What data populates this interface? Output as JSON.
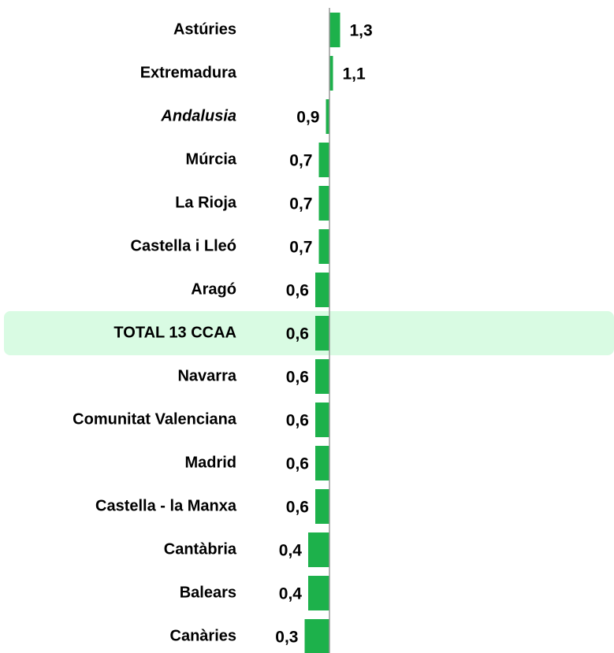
{
  "chart_data": {
    "type": "bar",
    "orientation": "horizontal",
    "base": 1,
    "categories": [
      "Astúries",
      "Extremadura",
      "Andalusia",
      "Múrcia",
      "La Rioja",
      "Castella i Lleó",
      "Aragó",
      "TOTAL 13 CCAA",
      "Navarra",
      "Comunitat Valenciana",
      "Madrid",
      "Castella - la Manxa",
      "Cantàbria",
      "Balears",
      "Canàries"
    ],
    "values": [
      1.3,
      1.1,
      0.9,
      0.7,
      0.7,
      0.7,
      0.6,
      0.6,
      0.6,
      0.6,
      0.6,
      0.6,
      0.4,
      0.4,
      0.3
    ],
    "value_labels": [
      "1,3",
      "1,1",
      "0,9",
      "0,7",
      "0,7",
      "0,7",
      "0,6",
      "0,6",
      "0,6",
      "0,6",
      "0,6",
      "0,6",
      "0,4",
      "0,4",
      "0,3"
    ],
    "color": "#1db14b",
    "highlight": 7,
    "italic": 2,
    "highlight_color": "#d9fbe3"
  }
}
